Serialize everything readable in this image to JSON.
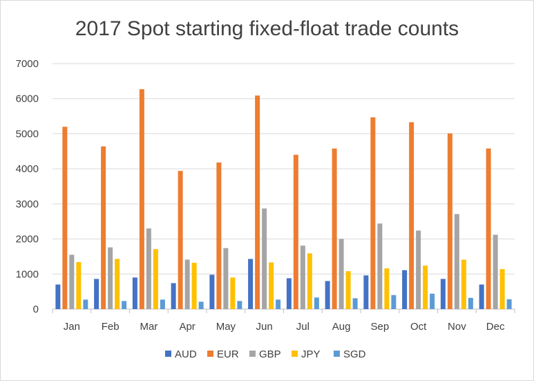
{
  "chart_data": {
    "type": "bar",
    "title": "2017 Spot starting fixed-float trade counts",
    "xlabel": "",
    "ylabel": "",
    "ylim": [
      0,
      7000
    ],
    "yticks": [
      0,
      1000,
      2000,
      3000,
      4000,
      5000,
      6000,
      7000
    ],
    "grid": true,
    "legend_position": "bottom",
    "categories": [
      "Jan",
      "Feb",
      "Mar",
      "Apr",
      "May",
      "Jun",
      "Jul",
      "Aug",
      "Sep",
      "Oct",
      "Nov",
      "Dec"
    ],
    "series": [
      {
        "name": "AUD",
        "color": "#4472c4",
        "values": [
          700,
          860,
          900,
          740,
          980,
          1430,
          880,
          800,
          960,
          1110,
          860,
          700
        ]
      },
      {
        "name": "EUR",
        "color": "#ed7d31",
        "values": [
          5200,
          4640,
          6270,
          3940,
          4180,
          6090,
          4400,
          4580,
          5470,
          5330,
          5010,
          4580
        ]
      },
      {
        "name": "GBP",
        "color": "#a5a5a5",
        "values": [
          1550,
          1760,
          2300,
          1410,
          1740,
          2870,
          1810,
          2000,
          2440,
          2240,
          2710,
          2120
        ]
      },
      {
        "name": "JPY",
        "color": "#ffc000",
        "values": [
          1340,
          1430,
          1710,
          1320,
          900,
          1330,
          1590,
          1080,
          1160,
          1240,
          1410,
          1140
        ]
      },
      {
        "name": "SGD",
        "color": "#5b9bd5",
        "values": [
          270,
          230,
          270,
          210,
          230,
          270,
          330,
          310,
          400,
          440,
          320,
          280
        ]
      }
    ]
  }
}
